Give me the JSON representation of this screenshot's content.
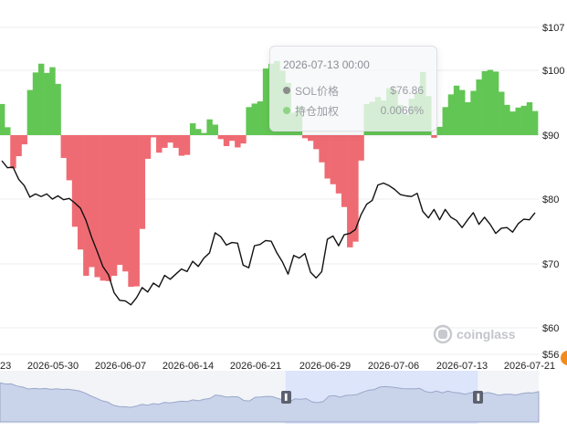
{
  "chart_data": {
    "type": "line",
    "y_right_ticks": [
      "$107",
      "$100",
      "$90",
      "$80",
      "$70",
      "$60",
      "$56"
    ],
    "y_right_values": [
      107,
      100,
      90,
      80,
      70,
      60,
      56
    ],
    "price_ylim": [
      56,
      107
    ],
    "bar_baseline": 90,
    "x_ticks": [
      "23",
      "2026-05-30",
      "2026-06-07",
      "2026-06-14",
      "2026-06-21",
      "2026-06-29",
      "2026-07-06",
      "2026-07-13",
      "2026-07-21"
    ],
    "series": [
      {
        "name": "SOL价格",
        "color": "#111111",
        "values": [
          86.0,
          84.9,
          85.0,
          83.1,
          82.1,
          80.3,
          80.8,
          80.4,
          80.8,
          80.0,
          80.5,
          79.9,
          80.1,
          79.4,
          78.6,
          76.7,
          74.1,
          71.9,
          69.6,
          68.3,
          65.5,
          64.3,
          64.2,
          63.6,
          64.7,
          66.3,
          65.6,
          67.0,
          66.4,
          68.2,
          67.6,
          68.4,
          69.2,
          68.8,
          70.4,
          69.6,
          70.9,
          71.7,
          74.8,
          74.2,
          72.9,
          73.3,
          73.2,
          69.8,
          69.4,
          72.8,
          73.0,
          73.6,
          73.5,
          71.7,
          70.3,
          68.4,
          71.3,
          70.9,
          71.6,
          68.7,
          67.8,
          68.8,
          73.8,
          74.3,
          72.8,
          74.5,
          74.7,
          75.3,
          77.6,
          79.2,
          79.8,
          82.2,
          82.5,
          82.1,
          81.5,
          80.7,
          80.5,
          80.4,
          80.9,
          78.1,
          77.1,
          78.4,
          76.8,
          78.4,
          77.2,
          76.7,
          75.6,
          76.8,
          77.9,
          76.1,
          77.2,
          76.1,
          74.7,
          75.5,
          75.6,
          74.9,
          76.2,
          76.9,
          76.8,
          77.9
        ]
      },
      {
        "name": "持仓加权",
        "color_pos": "#62c654",
        "color_neg": "#ef6b73",
        "values": [
          0.0071,
          0.0018,
          -0.0076,
          -0.0048,
          -0.0021,
          0.0103,
          0.0143,
          0.0163,
          0.0142,
          0.0155,
          0.0117,
          -0.0052,
          -0.0103,
          -0.0209,
          -0.0261,
          -0.0321,
          -0.0301,
          -0.0324,
          -0.0332,
          -0.0333,
          -0.0321,
          -0.0296,
          -0.0311,
          -0.0346,
          -0.0345,
          -0.0214,
          -0.0054,
          -0.0005,
          -0.004,
          -0.0029,
          -0.0017,
          -0.0029,
          -0.0047,
          -0.0045,
          0.0027,
          0.0014,
          0.0005,
          0.0036,
          0.0024,
          -0.0009,
          -0.0025,
          -0.0013,
          -0.0028,
          -0.0019,
          0.0064,
          0.0072,
          0.0077,
          0.0152,
          0.0163,
          0.0169,
          0.0147,
          0.0119,
          0.0051,
          0.0066,
          -0.0007,
          -0.0013,
          -0.0032,
          -0.0062,
          -0.0099,
          -0.0112,
          -0.0133,
          -0.0164,
          -0.0256,
          -0.0243,
          -0.0058,
          0.0071,
          0.0076,
          0.0087,
          0.0079,
          0.0107,
          0.0103,
          0.0069,
          0.0047,
          0.0083,
          0.0097,
          0.0144,
          0.0089,
          -0.0006,
          0.0019,
          0.0064,
          0.0093,
          0.0113,
          0.0103,
          0.0075,
          0.0101,
          0.0127,
          0.0146,
          0.0149,
          0.0145,
          0.0099,
          0.0069,
          0.0054,
          0.0063,
          0.0067,
          0.0075,
          0.0055
        ]
      }
    ],
    "grid": true,
    "legend": "tooltip"
  },
  "tooltip": {
    "title": "2026-07-13 00:00",
    "rows": [
      {
        "label": "SOL价格",
        "value": "$76.86",
        "color": "#8c8c8c"
      },
      {
        "label": "持仓加权",
        "value": "0.0066%",
        "color": "#8fd486"
      }
    ]
  },
  "watermark": {
    "text": "coinglass",
    "icon": "coinglass-logo-icon"
  },
  "brush": {
    "start_fraction": 0.53,
    "end_fraction": 0.887
  }
}
